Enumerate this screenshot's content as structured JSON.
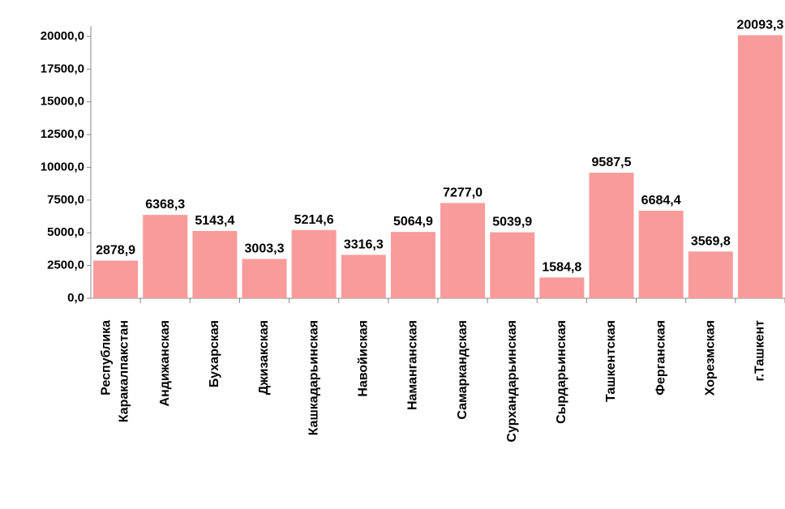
{
  "chart_data": {
    "type": "bar",
    "categories": [
      "Республика Каракалпакстан",
      "Андижанская",
      "Бухарская",
      "Джизакская",
      "Кашкадарьинская",
      "Навойиская",
      "Наманганская",
      "Самаркандская",
      "Сурхандарьинская",
      "Сырдарьинская",
      "Ташкентская",
      "Ферганская",
      "Хорезмская",
      "г.Ташкент"
    ],
    "values": [
      2878.9,
      6368.3,
      5143.4,
      3003.3,
      5214.6,
      3316.3,
      5064.9,
      7277.0,
      5039.9,
      1584.8,
      9587.5,
      6684.4,
      3569.8,
      20093.3
    ],
    "value_labels": [
      "2878,9",
      "6368,3",
      "5143,4",
      "3003,3",
      "5214,6",
      "3316,3",
      "5064,9",
      "7277,0",
      "5039,9",
      "1584,8",
      "9587,5",
      "6684,4",
      "3569,8",
      "20093,3"
    ],
    "color": "#f99b9b",
    "ylim": [
      0,
      20800
    ],
    "yticks": [
      {
        "value": 0,
        "label": "0,0"
      },
      {
        "value": 2500,
        "label": "2500,0"
      },
      {
        "value": 5000,
        "label": "5000,0"
      },
      {
        "value": 7500,
        "label": "7500,0"
      },
      {
        "value": 10000,
        "label": "10000,0"
      },
      {
        "value": 12500,
        "label": "12500,0"
      },
      {
        "value": 15000,
        "label": "15000,0"
      },
      {
        "value": 17500,
        "label": "17500,0"
      },
      {
        "value": 20000,
        "label": "20000,0"
      }
    ],
    "grid": false
  }
}
